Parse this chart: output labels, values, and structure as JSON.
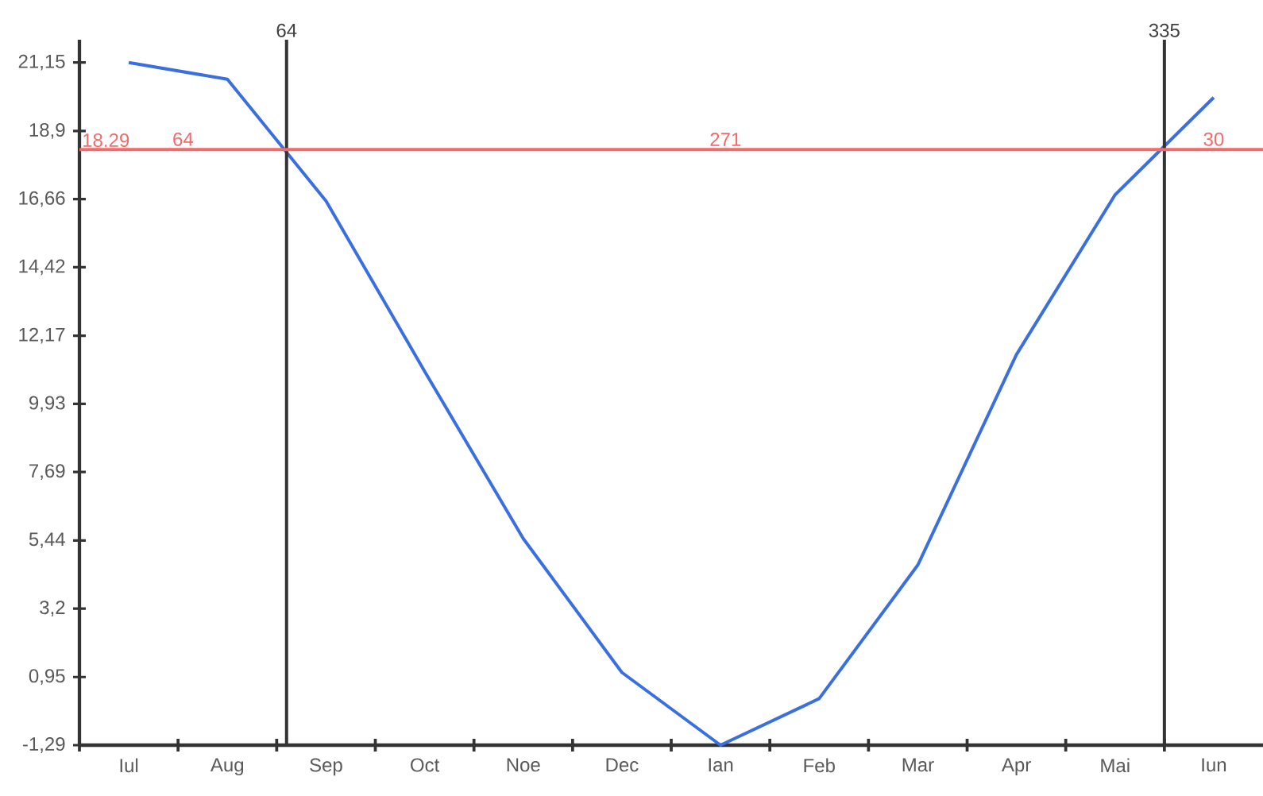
{
  "chart_data": {
    "type": "line",
    "categories": [
      "Iul",
      "Aug",
      "Sep",
      "Oct",
      "Noe",
      "Dec",
      "Ian",
      "Feb",
      "Mar",
      "Apr",
      "Mai",
      "Iun"
    ],
    "series": [
      {
        "color": "#3a6fe0",
        "values": [
          21.15,
          20.6,
          16.6,
          11.0,
          5.5,
          1.1,
          -1.29,
          0.24,
          4.63,
          11.55,
          16.8,
          20.0
        ]
      }
    ],
    "ylim": [
      -1.29,
      21.9
    ],
    "yticks": [
      {
        "value": -1.29,
        "label": "-1,29"
      },
      {
        "value": 0.95,
        "label": "0,95"
      },
      {
        "value": 3.2,
        "label": "3,2"
      },
      {
        "value": 5.44,
        "label": "5,44"
      },
      {
        "value": 7.69,
        "label": "7,69"
      },
      {
        "value": 9.93,
        "label": "9,93"
      },
      {
        "value": 12.17,
        "label": "12,17"
      },
      {
        "value": 14.42,
        "label": "14,42"
      },
      {
        "value": 16.66,
        "label": "16,66"
      },
      {
        "value": 18.9,
        "label": "18,9"
      },
      {
        "value": 21.15,
        "label": "21,15"
      }
    ],
    "ref_lines": [
      {
        "axis": "y",
        "value": 18.29,
        "label": "18.29",
        "color": "#f26b6b"
      }
    ],
    "annotations": [
      "64",
      "335",
      "64",
      "271",
      "30"
    ]
  }
}
